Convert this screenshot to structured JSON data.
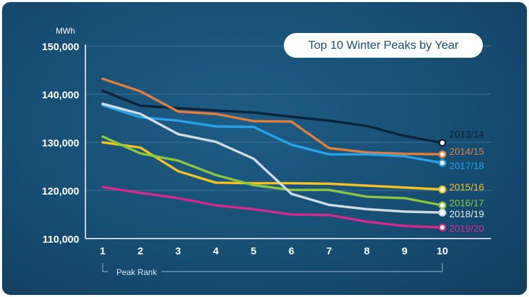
{
  "chart_data": {
    "type": "line",
    "title": "Top 10 Winter Peaks by Year",
    "ylabel": "MWh",
    "xlabel": "Peak Rank",
    "ylim": [
      110000,
      150000
    ],
    "y_ticks": [
      {
        "value": 110000,
        "label": "110,000"
      },
      {
        "value": 120000,
        "label": "120,000"
      },
      {
        "value": 130000,
        "label": "130,000"
      },
      {
        "value": 140000,
        "label": "140,000"
      },
      {
        "value": 150000,
        "label": "150,000"
      }
    ],
    "x": [
      1,
      2,
      3,
      4,
      5,
      6,
      7,
      8,
      9,
      10
    ],
    "x_tick_labels": [
      "1",
      "2",
      "3",
      "4",
      "5",
      "6",
      "7",
      "8",
      "9",
      "10"
    ],
    "grid": true,
    "series": [
      {
        "name": "2013/14",
        "color": "#0c2338",
        "values": [
          140700,
          137600,
          137100,
          136600,
          136200,
          135300,
          134500,
          133400,
          131300,
          129900
        ]
      },
      {
        "name": "2014/15",
        "color": "#e37e3a",
        "values": [
          143200,
          140600,
          136400,
          135900,
          134400,
          134300,
          128800,
          127900,
          127600,
          127500
        ]
      },
      {
        "name": "2017/18",
        "color": "#27a2e6",
        "values": [
          137700,
          135200,
          134500,
          133300,
          133200,
          129500,
          127500,
          127500,
          127100,
          125700
        ]
      },
      {
        "name": "2015/16",
        "color": "#f6c21f",
        "values": [
          130000,
          128900,
          124000,
          121600,
          121500,
          121500,
          121400,
          121000,
          120600,
          120200
        ]
      },
      {
        "name": "2016/17",
        "color": "#8cc63f",
        "values": [
          131200,
          127700,
          126200,
          123200,
          121100,
          120100,
          120100,
          118700,
          118400,
          116900
        ]
      },
      {
        "name": "2018/19",
        "color": "#d3dbe2",
        "values": [
          138000,
          135900,
          131700,
          130100,
          126600,
          119300,
          117000,
          116100,
          115600,
          115400
        ]
      },
      {
        "name": "2019/20",
        "color": "#d42a8e",
        "values": [
          120700,
          119500,
          118400,
          116900,
          116100,
          115000,
          114900,
          113500,
          112600,
          112300
        ]
      }
    ]
  }
}
